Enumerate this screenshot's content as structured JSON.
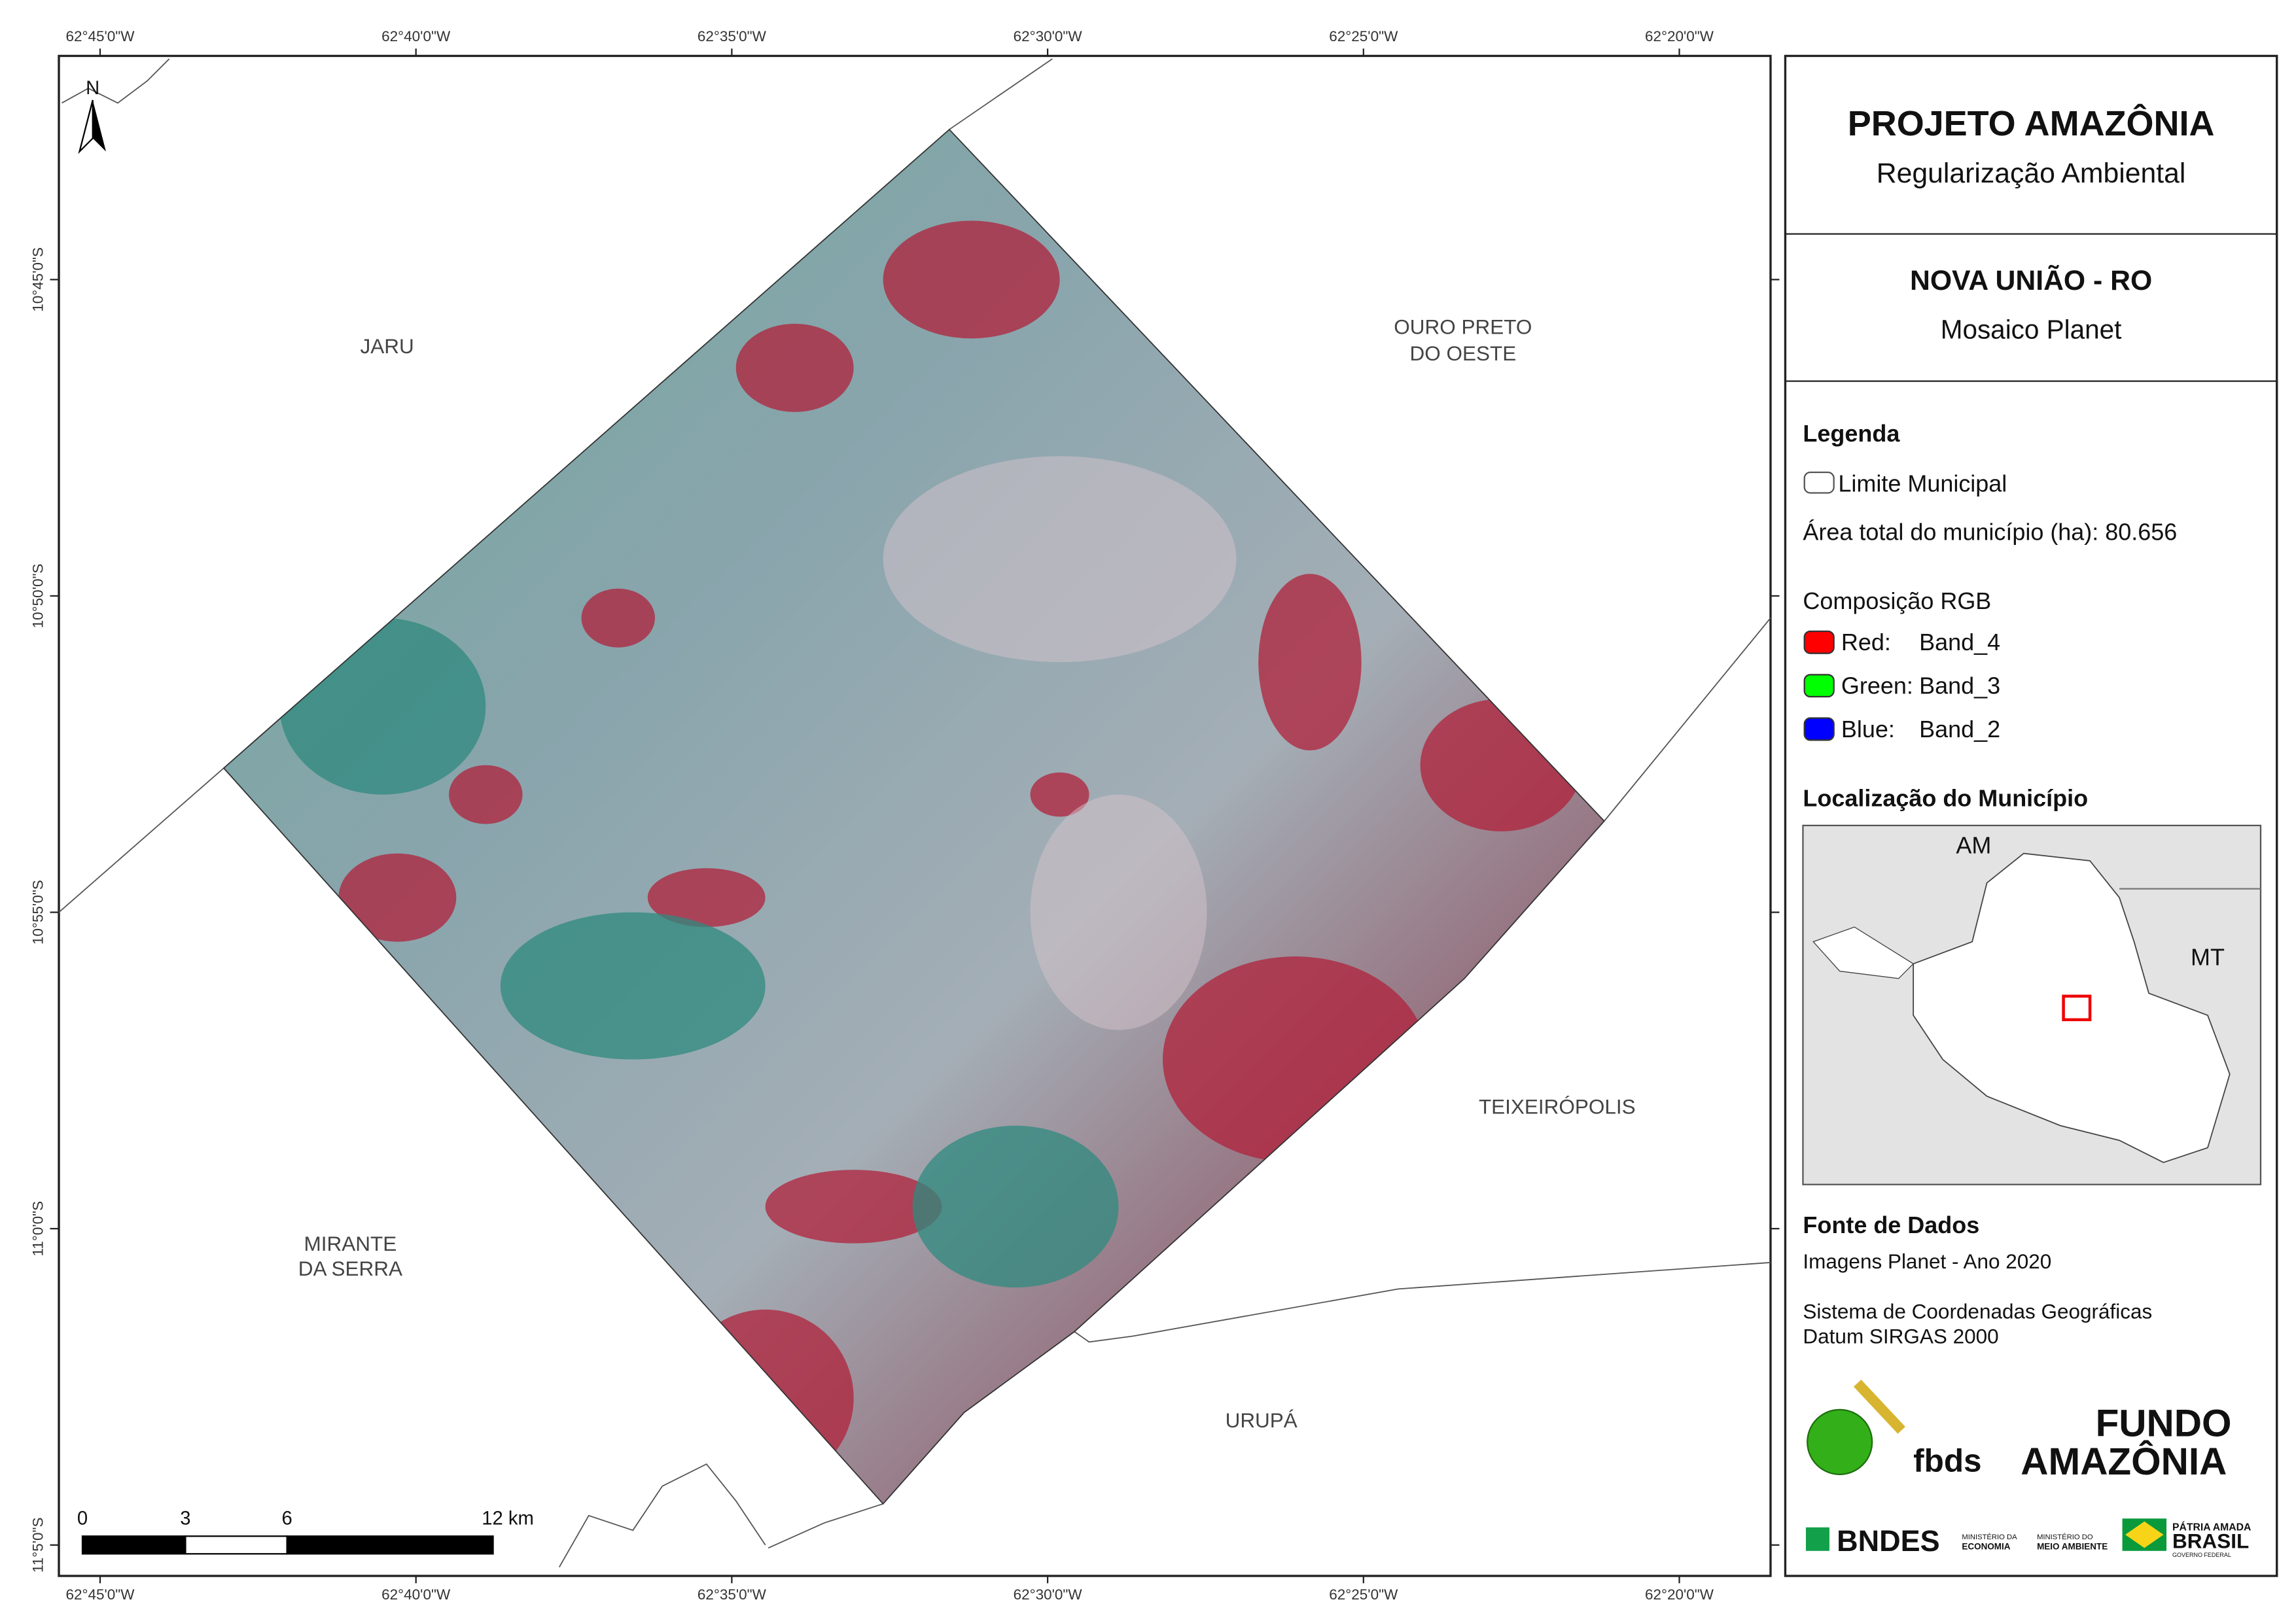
{
  "map": {
    "top_ticks": [
      "62°45'0\"W",
      "62°40'0\"W",
      "62°35'0\"W",
      "62°30'0\"W",
      "62°25'0\"W",
      "62°20'0\"W"
    ],
    "bottom_ticks": [
      "62°45'0\"W",
      "62°40'0\"W",
      "62°35'0\"W",
      "62°30'0\"W",
      "62°25'0\"W",
      "62°20'0\"W"
    ],
    "left_ticks": [
      "10°45'0\"S",
      "10°50'0\"S",
      "10°55'0\"S",
      "11°0'0\"S",
      "11°5'0\"S"
    ],
    "north": "N",
    "places": {
      "jaru": "JARU",
      "ouro_preto": [
        "OURO PRETO",
        "DO OESTE"
      ],
      "teixeiropolis": "TEIXEIRÓPOLIS",
      "mirante": [
        "MIRANTE",
        "DA SERRA"
      ],
      "urupa": "URUPÁ"
    },
    "scale": [
      "0",
      "3",
      "6",
      "12 km"
    ]
  },
  "panel": {
    "title": "PROJETO AMAZÔNIA",
    "subtitle": "Regularização Ambiental",
    "municipality": "NOVA UNIÃO - RO",
    "mosaic": "Mosaico Planet",
    "legend": {
      "heading": "Legenda",
      "boundary": "Limite Municipal",
      "area": "Área total do município (ha): 80.656",
      "rgb_heading": "Composição RGB",
      "bands": [
        {
          "channel": "Red:",
          "band": "Band_4",
          "color": "#ff0000"
        },
        {
          "channel": "Green:",
          "band": "Band_3",
          "color": "#00ff00"
        },
        {
          "channel": "Blue:",
          "band": "Band_2",
          "color": "#0000ff"
        }
      ]
    },
    "location": {
      "heading": "Localização do Município",
      "am": "AM",
      "mt": "MT"
    },
    "sources": {
      "heading": "Fonte de Dados",
      "images": "Imagens Planet - Ano 2020",
      "crs": [
        "Sistema de Coordenadas Geográficas",
        "Datum SIRGAS 2000"
      ]
    },
    "logos": {
      "fbds": "fbds",
      "fundo": [
        "FUNDO",
        "AMAZÔNIA"
      ],
      "bndes": "BNDES",
      "economia": [
        "MINISTÉRIO DA",
        "ECONOMIA"
      ],
      "meio": [
        "MINISTÉRIO DO",
        "MEIO AMBIENTE"
      ],
      "brasil": [
        "PÁTRIA AMADA",
        "BRASIL",
        "GOVERNO FEDERAL"
      ]
    }
  }
}
